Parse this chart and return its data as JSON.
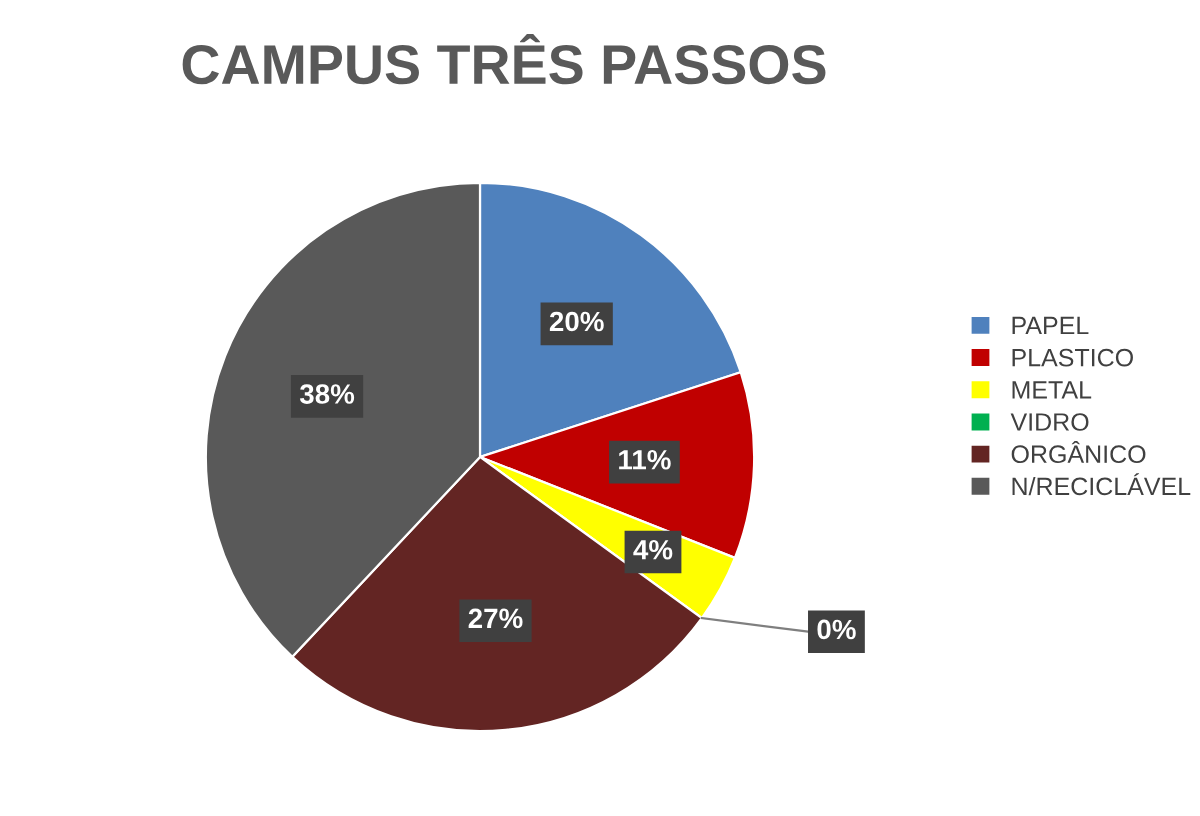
{
  "chart_data": {
    "type": "pie",
    "title": "CAMPUS TRÊS PASSOS",
    "categories": [
      "PAPEL",
      "PLASTICO",
      "METAL",
      "VIDRO",
      "ORGÂNICO",
      "N/RECICLÁVEL"
    ],
    "values": [
      20,
      11,
      4,
      0,
      27,
      38
    ],
    "value_labels": [
      "20%",
      "11%",
      "4%",
      "0%",
      "27%",
      "38%"
    ],
    "colors": [
      "#4f81bd",
      "#c00000",
      "#ffff00",
      "#00b050",
      "#632523",
      "#595959"
    ],
    "legend": "right"
  }
}
